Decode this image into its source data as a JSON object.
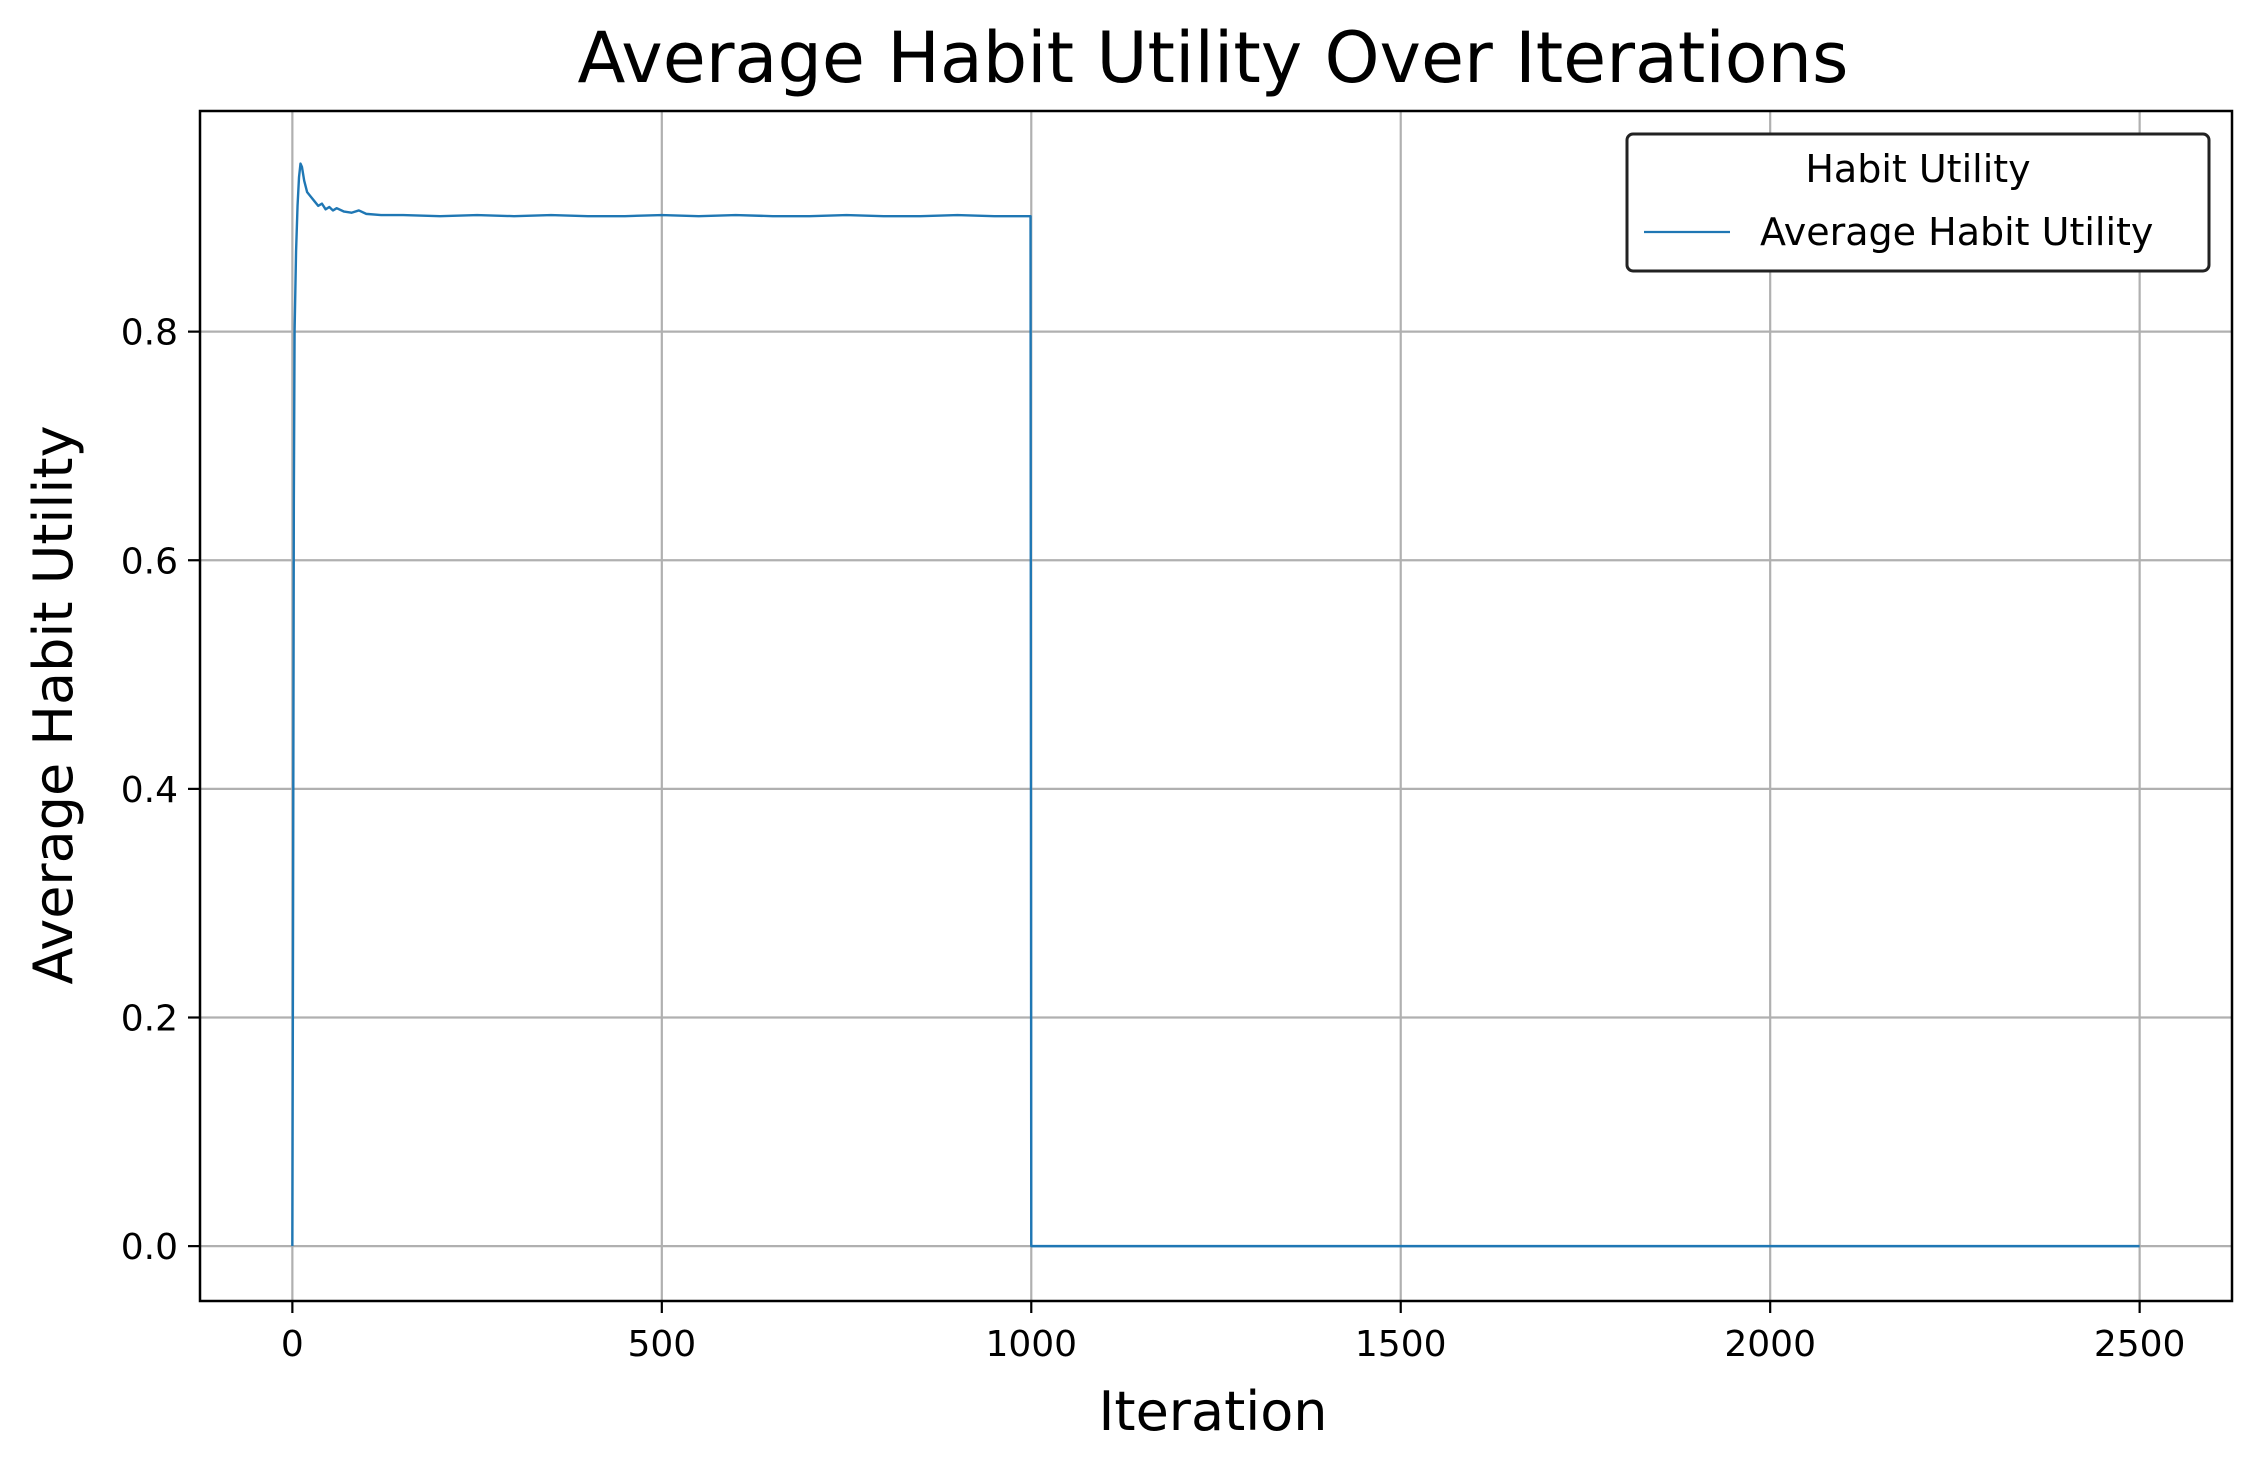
{
  "chart_data": {
    "type": "line",
    "title": "Average Habit Utility Over Iterations",
    "xlabel": "Iteration",
    "ylabel": "Average Habit Utility",
    "xlim": [
      -125,
      2625
    ],
    "ylim": [
      -0.048,
      0.993
    ],
    "x_ticks": [
      0,
      500,
      1000,
      1500,
      2000,
      2500
    ],
    "x_tick_labels": [
      "0",
      "500",
      "1000",
      "1500",
      "2000",
      "2500"
    ],
    "y_ticks": [
      0.0,
      0.2,
      0.4,
      0.6,
      0.8
    ],
    "y_tick_labels": [
      "0.0",
      "0.2",
      "0.4",
      "0.6",
      "0.8"
    ],
    "grid": true,
    "legend": {
      "title": "Habit Utility",
      "placement": "top-right",
      "entries": [
        "Average Habit Utility"
      ]
    },
    "series": [
      {
        "name": "Average Habit Utility",
        "color": "#1f77b4",
        "points": [
          [
            0,
            0.0
          ],
          [
            1,
            0.3
          ],
          [
            2,
            0.65
          ],
          [
            3,
            0.8
          ],
          [
            5,
            0.87
          ],
          [
            7,
            0.91
          ],
          [
            9,
            0.935
          ],
          [
            11,
            0.947
          ],
          [
            13,
            0.944
          ],
          [
            16,
            0.932
          ],
          [
            20,
            0.922
          ],
          [
            25,
            0.918
          ],
          [
            30,
            0.914
          ],
          [
            35,
            0.91
          ],
          [
            40,
            0.912
          ],
          [
            45,
            0.907
          ],
          [
            50,
            0.909
          ],
          [
            55,
            0.906
          ],
          [
            60,
            0.908
          ],
          [
            70,
            0.905
          ],
          [
            80,
            0.904
          ],
          [
            90,
            0.906
          ],
          [
            100,
            0.903
          ],
          [
            120,
            0.902
          ],
          [
            150,
            0.902
          ],
          [
            200,
            0.901
          ],
          [
            250,
            0.902
          ],
          [
            300,
            0.901
          ],
          [
            350,
            0.902
          ],
          [
            400,
            0.901
          ],
          [
            450,
            0.901
          ],
          [
            500,
            0.902
          ],
          [
            550,
            0.901
          ],
          [
            600,
            0.902
          ],
          [
            650,
            0.901
          ],
          [
            700,
            0.901
          ],
          [
            750,
            0.902
          ],
          [
            800,
            0.901
          ],
          [
            850,
            0.901
          ],
          [
            900,
            0.902
          ],
          [
            950,
            0.901
          ],
          [
            999,
            0.901
          ],
          [
            1000,
            0.0
          ],
          [
            1500,
            0.0
          ],
          [
            2000,
            0.0
          ],
          [
            2500,
            0.0
          ]
        ]
      }
    ]
  }
}
